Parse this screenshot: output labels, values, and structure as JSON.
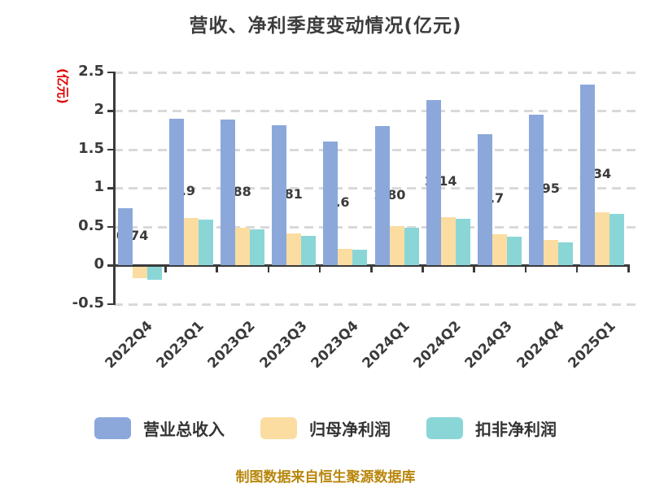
{
  "title": "营收、净利季度变动情况(亿元)",
  "footer": {
    "source_note": "制图数据来自恒生聚源数据库"
  },
  "colors": {
    "revenue_blue": "#8ca8db",
    "net_profit_orange": "#fbdda2",
    "non_gaap_teal": "#8ad6d7",
    "axis": "#3a3a3a",
    "grid": "#d9d9d9",
    "ylabel_red": "#e00000",
    "footer_gold": "#b8860b"
  },
  "chart_data": {
    "type": "bar",
    "title": "营收、净利季度变动情况(亿元)",
    "ylabel": "(亿元)",
    "xlabel": "",
    "categories": [
      "2022Q4",
      "2023Q1",
      "2023Q2",
      "2023Q3",
      "2023Q4",
      "2024Q1",
      "2024Q2",
      "2024Q3",
      "2024Q4",
      "2025Q1"
    ],
    "series": [
      {
        "name": "营业总收入",
        "color_key": "revenue_blue",
        "values": [
          0.74,
          1.9,
          1.88,
          1.81,
          1.6,
          1.8,
          2.14,
          1.7,
          1.95,
          2.34
        ],
        "labels": [
          "0.74",
          "1.9",
          "1.88",
          "1.81",
          "1.6",
          "1.80",
          "2.14",
          "1.7",
          "1.95",
          "2.34"
        ],
        "show_labels": true
      },
      {
        "name": "归母净利润",
        "color_key": "net_profit_orange",
        "values": [
          -0.15,
          0.61,
          0.48,
          0.41,
          0.21,
          0.51,
          0.62,
          0.4,
          0.33,
          0.68
        ],
        "show_labels": false
      },
      {
        "name": "扣非净利润",
        "color_key": "non_gaap_teal",
        "values": [
          -0.17,
          0.59,
          0.46,
          0.38,
          0.2,
          0.48,
          0.6,
          0.37,
          0.3,
          0.66
        ],
        "show_labels": false
      }
    ],
    "ylim": [
      -0.5,
      2.5
    ],
    "yticks": [
      2.5,
      2,
      1.5,
      1,
      0.5,
      0,
      -0.5
    ],
    "ytick_labels": [
      "2.5",
      "2",
      "1.5",
      "1",
      "0.5",
      "0",
      "-0.5"
    ],
    "grid": "horizontal dashed at each ytick except 0; solid dark baseline at 0",
    "legend_position": "bottom"
  }
}
